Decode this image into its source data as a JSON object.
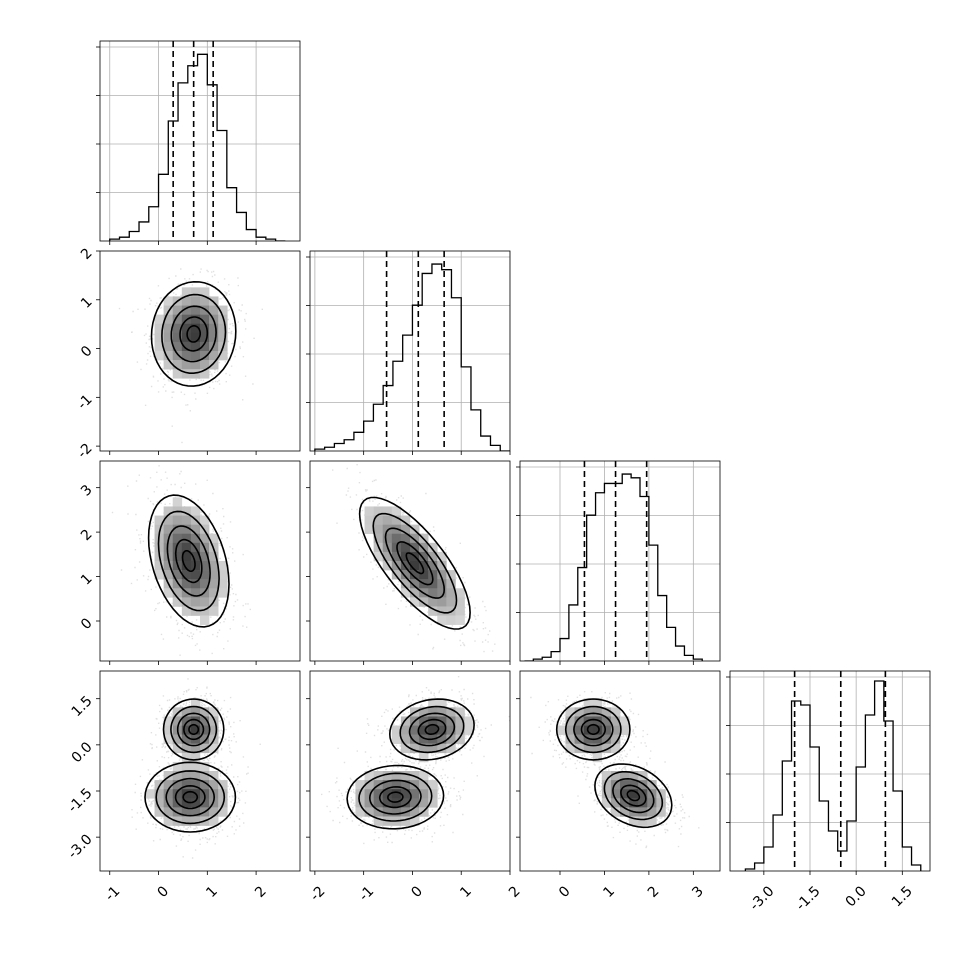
{
  "chart_data": {
    "type": "corner",
    "grid": true,
    "n_params": 4,
    "params": [
      {
        "range": [
          -1.2,
          2.9
        ],
        "ticks": [
          "-1",
          "0",
          "1",
          "2"
        ],
        "tick_values": [
          -1,
          0,
          1,
          2
        ],
        "quantiles": [
          0.3,
          0.72,
          1.12
        ],
        "hist": {
          "bins": [
            -1.0,
            -0.8,
            -0.6,
            -0.4,
            -0.2,
            0.0,
            0.2,
            0.4,
            0.6,
            0.8,
            1.0,
            1.2,
            1.4,
            1.6,
            1.8,
            2.0,
            2.2,
            2.4
          ],
          "heights": [
            0.01,
            0.02,
            0.05,
            0.1,
            0.18,
            0.35,
            0.63,
            0.83,
            0.92,
            0.98,
            0.82,
            0.58,
            0.28,
            0.15,
            0.06,
            0.02,
            0.01,
            0.0
          ],
          "ymax": 1.05
        }
      },
      {
        "range": [
          -2.1,
          2.0
        ],
        "ticks": [
          "-2",
          "-1",
          "0",
          "1",
          "2"
        ],
        "tick_values": [
          -2,
          -1,
          0,
          1,
          2
        ],
        "quantiles": [
          -0.53,
          0.12,
          0.65
        ],
        "hist": {
          "bins": [
            -2.0,
            -1.8,
            -1.6,
            -1.4,
            -1.2,
            -1.0,
            -0.8,
            -0.6,
            -0.4,
            -0.2,
            0.0,
            0.2,
            0.4,
            0.6,
            0.8,
            1.0,
            1.2,
            1.4,
            1.6,
            1.8
          ],
          "heights": [
            0.01,
            0.02,
            0.04,
            0.06,
            0.1,
            0.16,
            0.25,
            0.35,
            0.48,
            0.62,
            0.78,
            0.95,
            1.0,
            0.97,
            0.82,
            0.45,
            0.22,
            0.08,
            0.03,
            0.0
          ],
          "ymax": 1.07
        }
      },
      {
        "range": [
          -0.9,
          3.6
        ],
        "ticks": [
          "0",
          "1",
          "2",
          "3"
        ],
        "tick_values": [
          0,
          1,
          2,
          3
        ],
        "quantiles": [
          0.55,
          1.25,
          1.95
        ],
        "hist": {
          "bins": [
            -0.8,
            -0.6,
            -0.4,
            -0.2,
            0.0,
            0.2,
            0.4,
            0.6,
            0.8,
            1.0,
            1.2,
            1.4,
            1.6,
            1.8,
            2.0,
            2.2,
            2.4,
            2.6,
            2.8,
            3.0
          ],
          "heights": [
            0.0,
            0.01,
            0.02,
            0.05,
            0.12,
            0.3,
            0.5,
            0.78,
            0.9,
            0.95,
            0.95,
            1.0,
            0.98,
            0.88,
            0.62,
            0.35,
            0.18,
            0.08,
            0.03,
            0.01
          ],
          "ymax": 1.07
        }
      },
      {
        "range": [
          -4.1,
          2.4
        ],
        "ticks": [
          "-3.0",
          "-1.5",
          "0.0",
          "1.5"
        ],
        "tick_values": [
          -3,
          -1.5,
          0,
          1.5
        ],
        "quantiles": [
          -2.0,
          -0.5,
          0.95
        ],
        "hist": {
          "bins": [
            -3.6,
            -3.3,
            -3.0,
            -2.7,
            -2.4,
            -2.1,
            -1.8,
            -1.5,
            -1.2,
            -0.9,
            -0.6,
            -0.3,
            0.0,
            0.3,
            0.6,
            0.9,
            1.2,
            1.5,
            1.8
          ],
          "heights": [
            0.01,
            0.04,
            0.12,
            0.28,
            0.55,
            0.85,
            0.83,
            0.62,
            0.35,
            0.2,
            0.1,
            0.25,
            0.52,
            0.78,
            0.95,
            0.75,
            0.4,
            0.12,
            0.03
          ],
          "ymax": 1.0
        }
      }
    ],
    "pairs": [
      {
        "i": 1,
        "j": 0,
        "blobs": [
          {
            "cx": 0.72,
            "cy": 0.3,
            "sx": 0.42,
            "sy": 0.52,
            "rho": 0.05
          }
        ]
      },
      {
        "i": 2,
        "j": 0,
        "blobs": [
          {
            "cx": 0.62,
            "cy": 1.35,
            "sx": 0.4,
            "sy": 0.72,
            "rho": -0.35
          }
        ]
      },
      {
        "i": 2,
        "j": 1,
        "blobs": [
          {
            "cx": 0.05,
            "cy": 1.3,
            "sx": 0.55,
            "sy": 0.72,
            "rho": -0.75
          }
        ]
      },
      {
        "i": 3,
        "j": 0,
        "blobs": [
          {
            "cx": 0.72,
            "cy": 0.5,
            "sx": 0.3,
            "sy": 0.48,
            "rho": 0.0
          },
          {
            "cx": 0.65,
            "cy": -1.7,
            "sx": 0.45,
            "sy": 0.55,
            "rho": 0.0
          }
        ]
      },
      {
        "i": 3,
        "j": 1,
        "blobs": [
          {
            "cx": 0.4,
            "cy": 0.5,
            "sx": 0.42,
            "sy": 0.48,
            "rho": 0.15
          },
          {
            "cx": -0.35,
            "cy": -1.7,
            "sx": 0.48,
            "sy": 0.5,
            "rho": 0.05
          }
        ]
      },
      {
        "i": 3,
        "j": 2,
        "blobs": [
          {
            "cx": 0.75,
            "cy": 0.5,
            "sx": 0.4,
            "sy": 0.48,
            "rho": 0.0
          },
          {
            "cx": 1.65,
            "cy": -1.65,
            "sx": 0.42,
            "sy": 0.5,
            "rho": -0.3
          }
        ]
      }
    ],
    "contour_levels": [
      0.12,
      0.3,
      0.55,
      0.8,
      0.95
    ]
  }
}
